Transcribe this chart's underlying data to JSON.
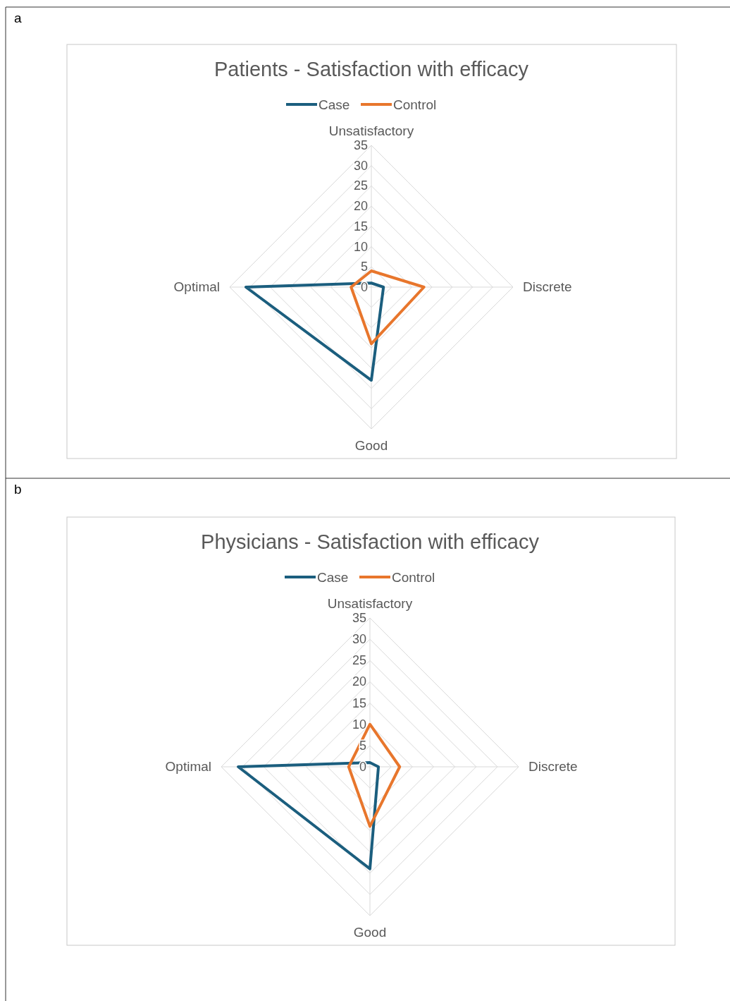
{
  "chart_data": [
    {
      "type": "radar",
      "title": "Patients - Satisfaction with efficacy",
      "annotations": [
        "a"
      ],
      "categories": [
        "Unsatisfactory",
        "Discrete",
        "Good",
        "Optimal"
      ],
      "series": [
        {
          "name": "Case",
          "color": "#1b5e7e",
          "values": [
            1,
            3,
            23,
            31
          ]
        },
        {
          "name": "Control",
          "color": "#e8762c",
          "values": [
            4,
            13,
            14,
            5
          ]
        }
      ],
      "ylim": [
        0,
        35
      ],
      "yticks": [
        0,
        5,
        10,
        15,
        20,
        25,
        30,
        35
      ],
      "legend": "top",
      "grid": true
    },
    {
      "type": "radar",
      "title": "Physicians - Satisfaction with efficacy",
      "annotations": [
        "b"
      ],
      "categories": [
        "Unsatisfactory",
        "Discrete",
        "Good",
        "Optimal"
      ],
      "series": [
        {
          "name": "Case",
          "color": "#1b5e7e",
          "values": [
            1,
            2,
            24,
            31
          ]
        },
        {
          "name": "Control",
          "color": "#e8762c",
          "values": [
            10,
            7,
            14,
            5
          ]
        }
      ],
      "ylim": [
        0,
        35
      ],
      "yticks": [
        0,
        5,
        10,
        15,
        20,
        25,
        30,
        35
      ],
      "legend": "top",
      "grid": true
    }
  ]
}
